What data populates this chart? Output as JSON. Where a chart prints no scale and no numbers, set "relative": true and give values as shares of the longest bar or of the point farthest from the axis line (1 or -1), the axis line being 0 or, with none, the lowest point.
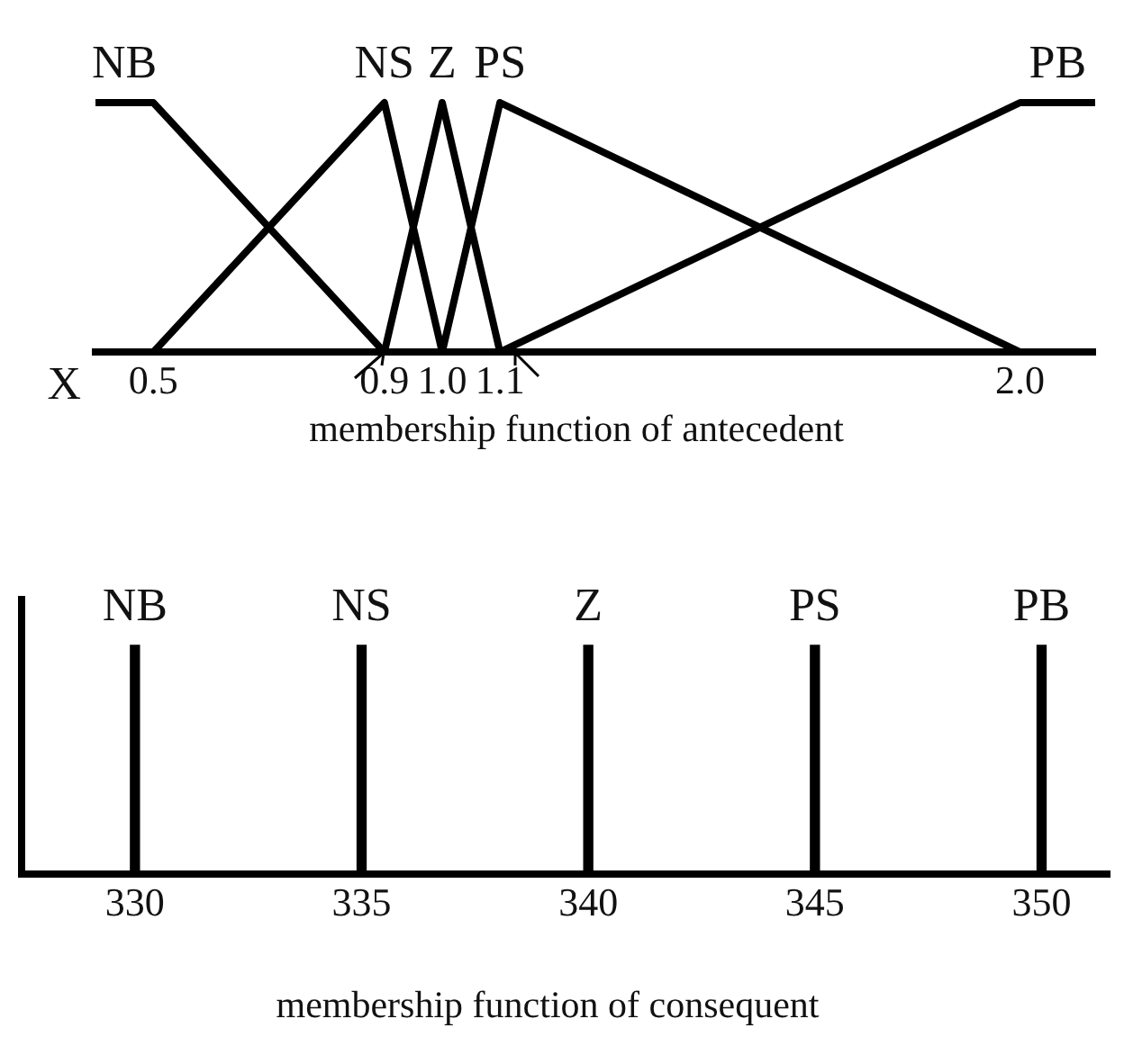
{
  "chart_data": [
    {
      "type": "line",
      "title": "membership function of antecedent",
      "xlabel": "X",
      "relative": true,
      "marker": "none",
      "line_style": "solid",
      "xlim": [
        0.4,
        2.13
      ],
      "xticks": [
        0.5,
        0.9,
        {
          "value": 1.0,
          "label": "1.0"
        },
        1.1,
        {
          "value": 2.0,
          "label": "2.0"
        }
      ],
      "series": [
        {
          "name": "NB",
          "color": "#000000",
          "x": [
            0.4,
            0.5,
            0.9
          ],
          "values": [
            1,
            1,
            0
          ]
        },
        {
          "name": "NS",
          "color": "#000000",
          "x": [
            0.5,
            0.9,
            1.0
          ],
          "values": [
            0,
            1,
            0
          ]
        },
        {
          "name": "Z",
          "color": "#000000",
          "x": [
            0.9,
            1.0,
            1.1
          ],
          "values": [
            0,
            1,
            0
          ]
        },
        {
          "name": "PS",
          "color": "#000000",
          "x": [
            1.0,
            1.1,
            2.0
          ],
          "values": [
            0,
            1,
            0
          ]
        },
        {
          "name": "PB",
          "color": "#000000",
          "x": [
            1.1,
            2.0,
            2.13
          ],
          "values": [
            0,
            1,
            1
          ]
        }
      ]
    },
    {
      "type": "bar",
      "title": "membership function of consequent",
      "relative": true,
      "xlim": [
        327.5,
        351.5
      ],
      "xticks": [
        330,
        335,
        340,
        345,
        350
      ],
      "series": [
        {
          "name": "NB",
          "color": "#000000",
          "x": [
            330
          ],
          "values": [
            1
          ]
        },
        {
          "name": "NS",
          "color": "#000000",
          "x": [
            335
          ],
          "values": [
            1
          ]
        },
        {
          "name": "Z",
          "color": "#000000",
          "x": [
            340
          ],
          "values": [
            1
          ]
        },
        {
          "name": "PS",
          "color": "#000000",
          "x": [
            345
          ],
          "values": [
            1
          ]
        },
        {
          "name": "PB",
          "color": "#000000",
          "x": [
            350
          ],
          "values": [
            1
          ]
        }
      ]
    }
  ]
}
